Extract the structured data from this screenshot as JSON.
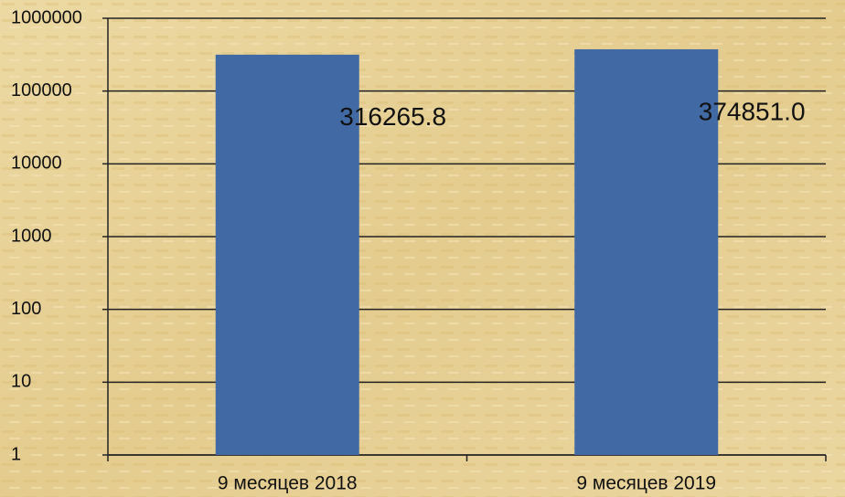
{
  "chart_data": {
    "type": "bar",
    "categories": [
      "9 месяцев 2018",
      "9 месяцев 2019"
    ],
    "values": [
      316265.8,
      374851.0
    ],
    "value_labels": [
      "316265.8",
      "374851.0"
    ],
    "color": "#4169a3",
    "log_scale": true,
    "ylim": [
      1,
      1000000
    ],
    "yticks": [
      1,
      10,
      100,
      1000,
      10000,
      100000,
      1000000
    ],
    "grid": true
  }
}
